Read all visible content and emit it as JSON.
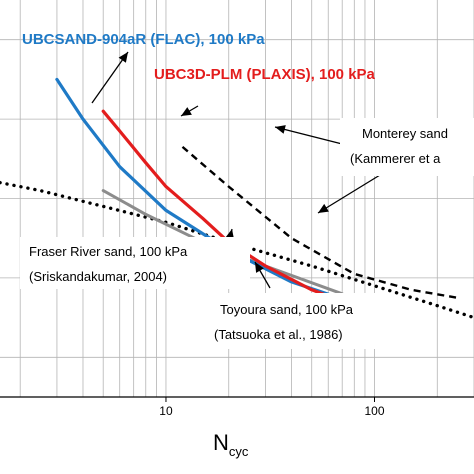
{
  "chart_data": {
    "type": "line",
    "x_scale": "log",
    "xlim": [
      1.6,
      300
    ],
    "y_scale": "linear",
    "ylim": [
      0,
      1
    ],
    "grid": true,
    "xlabel": "N",
    "xlabel_sub": "cyc",
    "x_tick_labels": [
      "10",
      "100"
    ],
    "x_tick_values": [
      10,
      100
    ],
    "series": [
      {
        "name": "UBCSAND-904aR (FLAC), 100 kPa",
        "color": "#1f7ac6",
        "style": "solid",
        "points": [
          [
            3,
            0.8
          ],
          [
            4,
            0.7
          ],
          [
            6,
            0.58
          ],
          [
            10,
            0.47
          ],
          [
            20,
            0.37
          ],
          [
            40,
            0.29
          ],
          [
            100,
            0.22
          ]
        ]
      },
      {
        "name": "UBC3D-PLM (PLAXIS), 100 kPa",
        "color": "#e31d1d",
        "style": "solid",
        "points": [
          [
            5,
            0.72
          ],
          [
            6,
            0.67
          ],
          [
            8,
            0.59
          ],
          [
            10,
            0.53
          ],
          [
            15,
            0.45
          ],
          [
            20,
            0.39
          ],
          [
            30,
            0.33
          ],
          [
            50,
            0.27
          ],
          [
            100,
            0.21
          ]
        ]
      },
      {
        "name": "Toyoura sand, 100 kPa",
        "color": "#8c8c8c",
        "style": "solid",
        "points": [
          [
            5,
            0.52
          ],
          [
            8,
            0.46
          ],
          [
            15,
            0.39
          ],
          [
            30,
            0.33
          ],
          [
            70,
            0.26
          ]
        ]
      },
      {
        "name": "Monterey sand",
        "color": "#000000",
        "style": "dashed",
        "points": [
          [
            12,
            0.63
          ],
          [
            20,
            0.53
          ],
          [
            40,
            0.4
          ],
          [
            80,
            0.31
          ],
          [
            150,
            0.27
          ],
          [
            250,
            0.25
          ]
        ]
      },
      {
        "name": "Fraser River sand, 100 kPa",
        "color": "#000000",
        "style": "dotted",
        "points": [
          [
            1.6,
            0.54
          ],
          [
            2.5,
            0.52
          ],
          [
            5,
            0.48
          ],
          [
            10,
            0.44
          ],
          [
            20,
            0.39
          ],
          [
            50,
            0.33
          ],
          [
            100,
            0.28
          ],
          [
            200,
            0.23
          ],
          [
            300,
            0.2
          ]
        ]
      }
    ],
    "annotations": {
      "blue_label": "UBCSAND-904aR (FLAC), 100 kPa",
      "red_label": "UBC3D-PLM (PLAXIS), 100 kPa",
      "monterey_line1": "Monterey sand",
      "monterey_line2": "(Kammerer et a",
      "fraser_line1": "Fraser River sand, 100 kPa",
      "fraser_line2": "(Sriskandakumar, 2004)",
      "toyoura_line1": "Toyoura sand, 100 kPa",
      "toyoura_line2": "(Tatsuoka et al., 1986)"
    }
  }
}
